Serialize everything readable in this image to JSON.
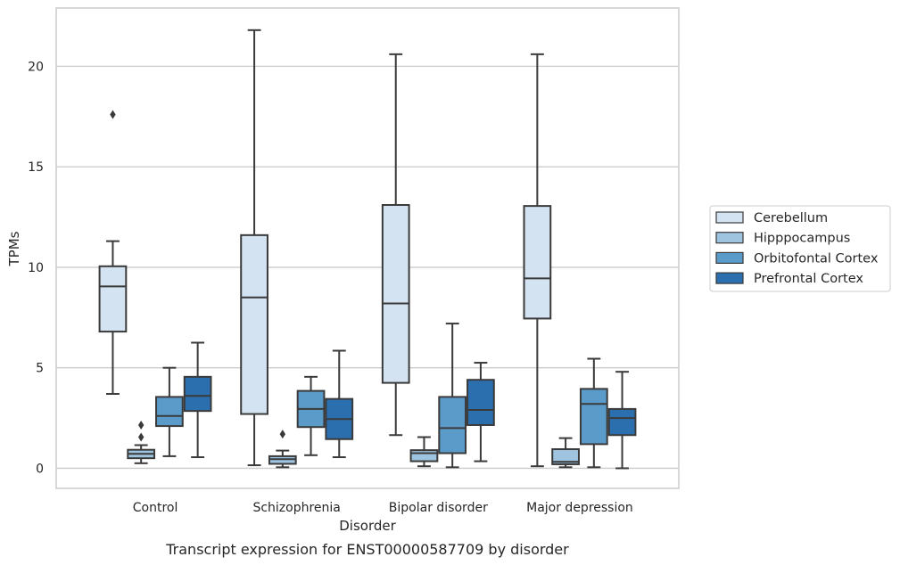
{
  "chart_data": {
    "type": "box",
    "caption": "Transcript expression for ENST00000587709 by disorder",
    "xlabel": "Disorder",
    "ylabel": "TPMs",
    "ylim": [
      -1,
      22.9
    ],
    "yticks": [
      0,
      5,
      10,
      15,
      20
    ],
    "grid": true,
    "legend_position": "right",
    "categories": [
      "Control",
      "Schizophrenia",
      "Bipolar disorder",
      "Major depression"
    ],
    "series": [
      {
        "name": "Cerebellum",
        "color": "#d4e3f2",
        "boxes": [
          {
            "min": 3.7,
            "q1": 6.8,
            "median": 9.05,
            "q3": 10.05,
            "max": 11.3,
            "outliers": [
              17.6
            ]
          },
          {
            "min": 0.15,
            "q1": 2.7,
            "median": 8.5,
            "q3": 11.6,
            "max": 21.8,
            "outliers": []
          },
          {
            "min": 1.65,
            "q1": 4.25,
            "median": 8.2,
            "q3": 13.1,
            "max": 20.6,
            "outliers": []
          },
          {
            "min": 0.1,
            "q1": 7.45,
            "median": 9.45,
            "q3": 13.05,
            "max": 20.6,
            "outliers": []
          }
        ]
      },
      {
        "name": "Hipppocampus",
        "color": "#9fc4df",
        "boxes": [
          {
            "min": 0.25,
            "q1": 0.5,
            "median": 0.72,
            "q3": 0.92,
            "max": 1.15,
            "outliers": [
              1.55,
              2.15
            ]
          },
          {
            "min": 0.05,
            "q1": 0.22,
            "median": 0.45,
            "q3": 0.6,
            "max": 0.88,
            "outliers": [
              1.7
            ]
          },
          {
            "min": 0.1,
            "q1": 0.35,
            "median": 0.75,
            "q3": 0.9,
            "max": 1.55,
            "outliers": []
          },
          {
            "min": 0.05,
            "q1": 0.2,
            "median": 0.32,
            "q3": 0.95,
            "max": 1.5,
            "outliers": []
          }
        ]
      },
      {
        "name": "Orbitofontal Cortex",
        "color": "#5a9bc9",
        "boxes": [
          {
            "min": 0.6,
            "q1": 2.1,
            "median": 2.6,
            "q3": 3.55,
            "max": 5.0,
            "outliers": []
          },
          {
            "min": 0.65,
            "q1": 2.05,
            "median": 2.95,
            "q3": 3.85,
            "max": 4.55,
            "outliers": []
          },
          {
            "min": 0.05,
            "q1": 0.75,
            "median": 2.0,
            "q3": 3.55,
            "max": 7.2,
            "outliers": []
          },
          {
            "min": 0.05,
            "q1": 1.2,
            "median": 3.2,
            "q3": 3.95,
            "max": 5.45,
            "outliers": []
          }
        ]
      },
      {
        "name": "Prefrontal Cortex",
        "color": "#2c6faf",
        "boxes": [
          {
            "min": 0.55,
            "q1": 2.85,
            "median": 3.6,
            "q3": 4.55,
            "max": 6.25,
            "outliers": []
          },
          {
            "min": 0.55,
            "q1": 1.45,
            "median": 2.45,
            "q3": 3.45,
            "max": 5.85,
            "outliers": []
          },
          {
            "min": 0.35,
            "q1": 2.15,
            "median": 2.9,
            "q3": 4.4,
            "max": 5.25,
            "outliers": []
          },
          {
            "min": 0.0,
            "q1": 1.65,
            "median": 2.5,
            "q3": 2.95,
            "max": 4.8,
            "outliers": []
          }
        ]
      }
    ]
  }
}
